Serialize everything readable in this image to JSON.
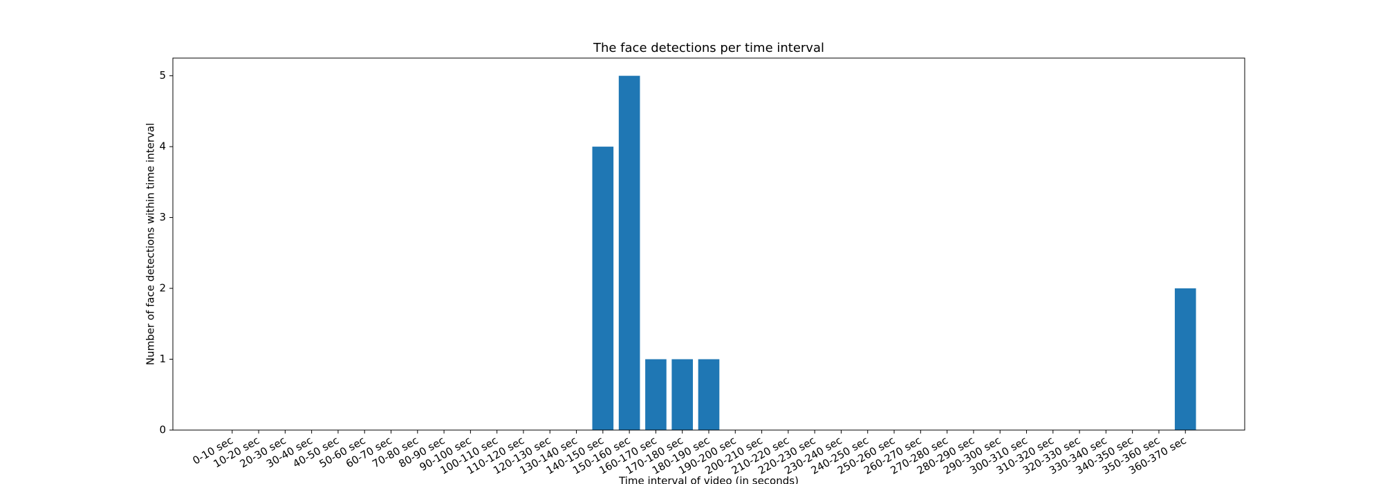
{
  "chart_data": {
    "type": "bar",
    "title": "The face detections per time interval",
    "xlabel": "Time interval of video (in seconds)",
    "ylabel": "Number of face detections within time interval",
    "categories": [
      "0-10 sec",
      "10-20 sec",
      "20-30 sec",
      "30-40 sec",
      "40-50 sec",
      "50-60 sec",
      "60-70 sec",
      "70-80 sec",
      "80-90 sec",
      "90-100 sec",
      "100-110 sec",
      "110-120 sec",
      "120-130 sec",
      "130-140 sec",
      "140-150 sec",
      "150-160 sec",
      "160-170 sec",
      "170-180 sec",
      "180-190 sec",
      "190-200 sec",
      "200-210 sec",
      "210-220 sec",
      "220-230 sec",
      "230-240 sec",
      "240-250 sec",
      "250-260 sec",
      "260-270 sec",
      "270-280 sec",
      "280-290 sec",
      "290-300 sec",
      "300-310 sec",
      "310-320 sec",
      "320-330 sec",
      "330-340 sec",
      "340-350 sec",
      "350-360 sec",
      "360-370 sec"
    ],
    "values": [
      0,
      0,
      0,
      0,
      0,
      0,
      0,
      0,
      0,
      0,
      0,
      0,
      0,
      0,
      4,
      5,
      1,
      1,
      1,
      0,
      0,
      0,
      0,
      0,
      0,
      0,
      0,
      0,
      0,
      0,
      0,
      0,
      0,
      0,
      0,
      0,
      2
    ],
    "color": "#1f77b4",
    "ylim": [
      0,
      5.25
    ],
    "yticks": [
      0,
      1,
      2,
      3,
      4,
      5
    ],
    "grid": false
  }
}
